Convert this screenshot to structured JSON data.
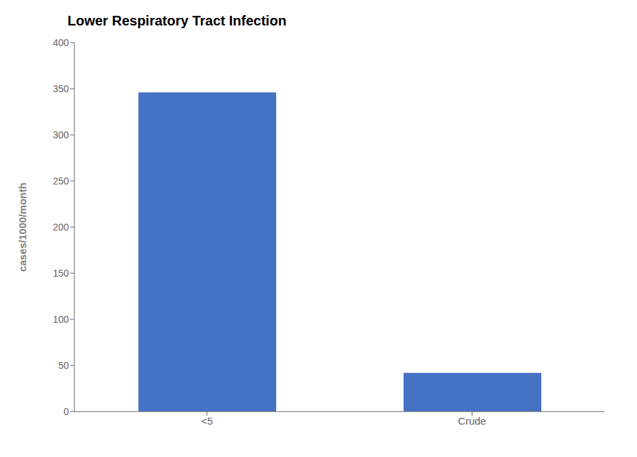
{
  "chart_data": {
    "type": "bar",
    "title": "Lower Respiratory Tract Infection",
    "categories": [
      "<5",
      "Crude"
    ],
    "values": [
      346,
      42
    ],
    "colors": [
      "#4472C4",
      "#4472C4"
    ],
    "ylabel": "cases/1000/month",
    "ylim": [
      0,
      400
    ],
    "yticks": [
      0,
      50,
      100,
      150,
      200,
      250,
      300,
      350,
      400
    ],
    "grid": false
  }
}
